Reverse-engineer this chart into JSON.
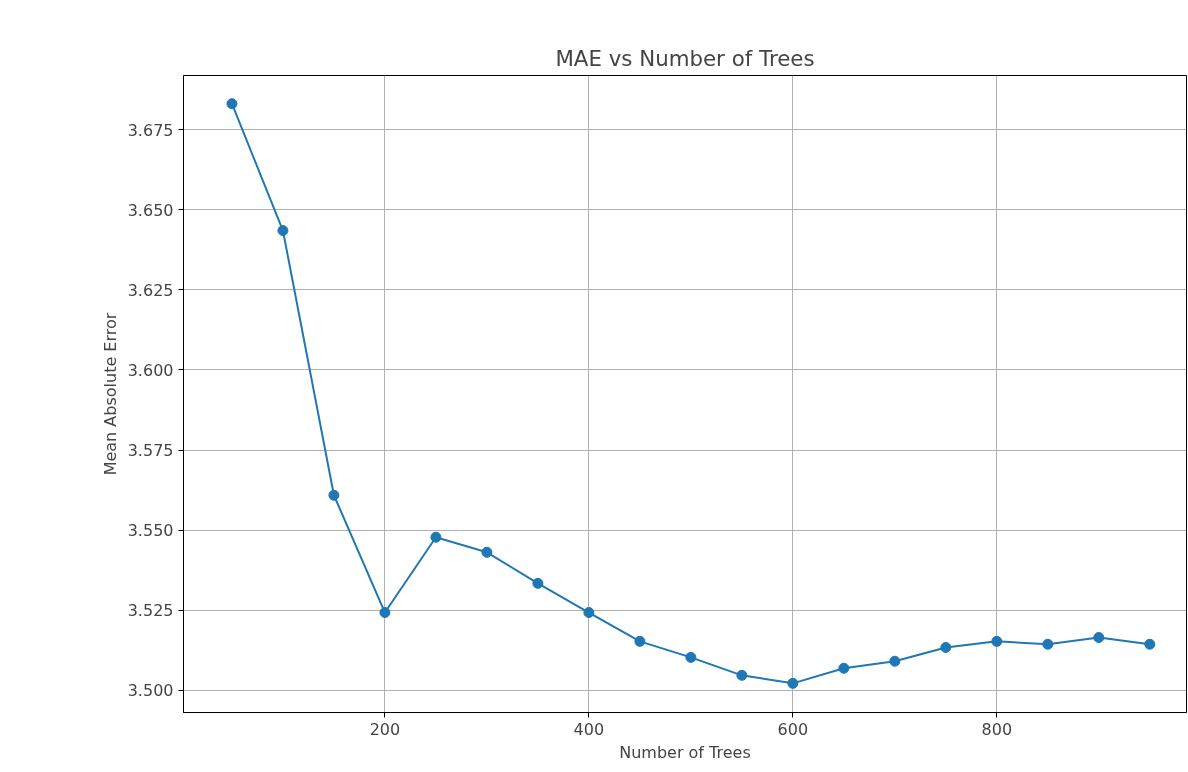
{
  "chart_data": {
    "type": "line",
    "title": "MAE vs Number of Trees",
    "xlabel": "Number of Trees",
    "ylabel": "Mean Absolute Error",
    "x": [
      50,
      100,
      150,
      200,
      250,
      300,
      350,
      400,
      450,
      500,
      550,
      600,
      650,
      700,
      750,
      800,
      850,
      900,
      950
    ],
    "series": [
      {
        "color": "#1f77b4",
        "values": [
          3.6831,
          3.6435,
          3.5609,
          3.5243,
          3.5478,
          3.5431,
          3.5334,
          3.5243,
          3.5153,
          3.5103,
          3.5047,
          3.5022,
          3.5069,
          3.5091,
          3.5134,
          3.5153,
          3.5144,
          3.5165,
          3.5144
        ]
      }
    ],
    "xlim": [
      2.5,
      986
    ],
    "ylim": [
      3.4931,
      3.6919
    ],
    "xticks": [
      200,
      400,
      600,
      800
    ],
    "yticks": [
      {
        "value": 3.5,
        "label": "3.500"
      },
      {
        "value": 3.525,
        "label": "3.525"
      },
      {
        "value": 3.55,
        "label": "3.550"
      },
      {
        "value": 3.575,
        "label": "3.575"
      },
      {
        "value": 3.6,
        "label": "3.600"
      },
      {
        "value": 3.625,
        "label": "3.625"
      },
      {
        "value": 3.65,
        "label": "3.650"
      },
      {
        "value": 3.675,
        "label": "3.675"
      }
    ],
    "grid": true,
    "marker": "circle",
    "line_style": "solid"
  }
}
